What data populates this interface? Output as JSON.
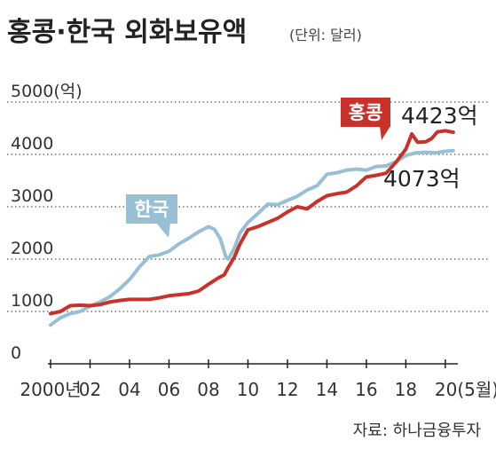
{
  "chart_data": {
    "type": "line",
    "title": "홍콩·한국 외화보유액",
    "unit_note": "(단위: 달러)",
    "ylim": [
      0,
      5000
    ],
    "y_ticks": [
      {
        "value": 0,
        "label": "0"
      },
      {
        "value": 1000,
        "label": "1000"
      },
      {
        "value": 2000,
        "label": "2000"
      },
      {
        "value": 3000,
        "label": "3000"
      },
      {
        "value": 4000,
        "label": "4000"
      },
      {
        "value": 5000,
        "label": "5000(억)"
      }
    ],
    "x_ticks": [
      {
        "value": 2000,
        "label": "2000년"
      },
      {
        "value": 2002,
        "label": "02"
      },
      {
        "value": 2004,
        "label": "04"
      },
      {
        "value": 2006,
        "label": "06"
      },
      {
        "value": 2008,
        "label": "08"
      },
      {
        "value": 2010,
        "label": "10"
      },
      {
        "value": 2012,
        "label": "12"
      },
      {
        "value": 2014,
        "label": "14"
      },
      {
        "value": 2016,
        "label": "16"
      },
      {
        "value": 2018,
        "label": "18"
      },
      {
        "value": 2020,
        "label": "20(5월)"
      }
    ],
    "xlim": [
      2000,
      2020.5
    ],
    "grid": true,
    "series": [
      {
        "name": "홍콩",
        "color": "#c8322b",
        "end_label": "4423억",
        "x": [
          2000,
          2000.5,
          2001,
          2001.5,
          2002,
          2002.5,
          2003,
          2003.5,
          2004,
          2004.5,
          2005,
          2005.5,
          2006,
          2006.5,
          2007,
          2007.5,
          2008,
          2008.5,
          2008.8,
          2009,
          2009.3,
          2009.6,
          2010,
          2010.5,
          2011,
          2011.5,
          2012,
          2012.5,
          2013,
          2013.5,
          2014,
          2014.5,
          2015,
          2015.5,
          2016,
          2016.5,
          2017,
          2017.5,
          2018,
          2018.3,
          2018.6,
          2019,
          2019.3,
          2019.6,
          2020,
          2020.4
        ],
        "values": [
          960,
          1000,
          1110,
          1120,
          1110,
          1130,
          1180,
          1210,
          1230,
          1230,
          1230,
          1260,
          1300,
          1320,
          1340,
          1390,
          1520,
          1640,
          1700,
          1840,
          2030,
          2290,
          2560,
          2620,
          2700,
          2780,
          2900,
          3000,
          2960,
          3100,
          3210,
          3250,
          3280,
          3400,
          3570,
          3600,
          3640,
          3850,
          4100,
          4390,
          4230,
          4240,
          4300,
          4430,
          4450,
          4423
        ]
      },
      {
        "name": "한국",
        "color": "#98bfd3",
        "end_label": "4073억",
        "x": [
          2000,
          2000.5,
          2001,
          2001.5,
          2002,
          2002.5,
          2003,
          2003.5,
          2004,
          2004.5,
          2005,
          2005.5,
          2006,
          2006.5,
          2007,
          2007.5,
          2008,
          2008.3,
          2008.6,
          2008.9,
          2009,
          2009.3,
          2009.6,
          2010,
          2010.5,
          2011,
          2011.5,
          2012,
          2012.5,
          2013,
          2013.5,
          2014,
          2014.5,
          2015,
          2015.5,
          2016,
          2016.5,
          2017,
          2017.5,
          2018,
          2018.5,
          2019,
          2019.5,
          2020,
          2020.4
        ],
        "values": [
          740,
          880,
          960,
          1000,
          1100,
          1180,
          1280,
          1430,
          1610,
          1850,
          2050,
          2080,
          2150,
          2290,
          2400,
          2520,
          2620,
          2570,
          2390,
          2020,
          2000,
          2200,
          2500,
          2700,
          2870,
          3050,
          3040,
          3120,
          3200,
          3320,
          3400,
          3620,
          3650,
          3700,
          3720,
          3700,
          3770,
          3780,
          3860,
          3980,
          4030,
          4040,
          4030,
          4060,
          4073
        ]
      }
    ],
    "source": "자료: 하나금융투자"
  }
}
